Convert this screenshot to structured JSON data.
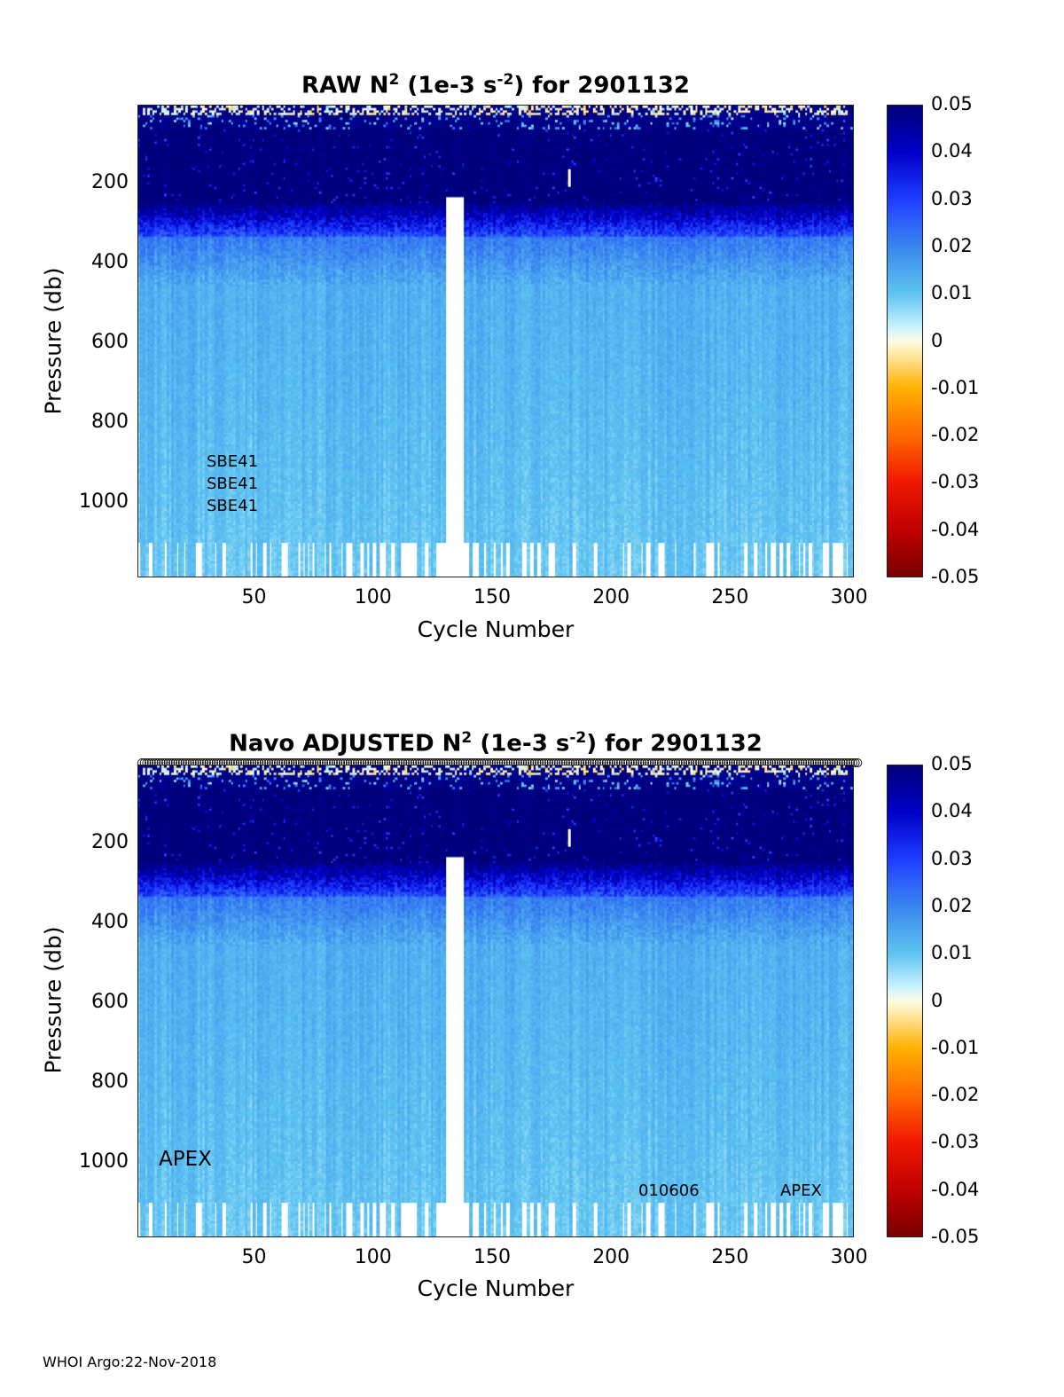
{
  "chart_data": [
    {
      "type": "heatmap",
      "title_prefix": "RAW N",
      "title_sup1": "2",
      "title_mid": " (1e-3 s",
      "title_sup2": "-2",
      "title_suffix": ") for 2901132",
      "xlabel": "Cycle Number",
      "ylabel": "Pressure (db)",
      "xticks": [
        "50",
        "100",
        "150",
        "200",
        "250",
        "300"
      ],
      "xtick_values": [
        50,
        100,
        150,
        200,
        250,
        300
      ],
      "yticks": [
        "200",
        "400",
        "600",
        "800",
        "1000"
      ],
      "ytick_values": [
        200,
        400,
        600,
        800,
        1000
      ],
      "xlim": [
        1,
        302
      ],
      "ylim": [
        1190,
        5
      ],
      "colorbar_ticks": [
        "0.05",
        "0.04",
        "0.03",
        "0.02",
        "0.01",
        "0",
        "-0.01",
        "-0.02",
        "-0.03",
        "-0.04",
        "-0.05"
      ],
      "colorbar_range": [
        -0.05,
        0.05
      ],
      "data_gap_cycles": [
        130,
        138
      ],
      "annotations": [
        "SBE41",
        "SBE41",
        "SBE41"
      ]
    },
    {
      "type": "heatmap",
      "title_prefix": "Navo  ADJUSTED N",
      "title_sup1": "2",
      "title_mid": " (1e-3 s",
      "title_sup2": "-2",
      "title_suffix": ") for 2901132",
      "xlabel": "Cycle Number",
      "ylabel": "Pressure (db)",
      "xticks": [
        "50",
        "100",
        "150",
        "200",
        "250",
        "300"
      ],
      "xtick_values": [
        50,
        100,
        150,
        200,
        250,
        300
      ],
      "yticks": [
        "200",
        "400",
        "600",
        "800",
        "1000"
      ],
      "ytick_values": [
        200,
        400,
        600,
        800,
        1000
      ],
      "xlim": [
        1,
        302
      ],
      "ylim": [
        1190,
        5
      ],
      "colorbar_ticks": [
        "0.05",
        "0.04",
        "0.03",
        "0.02",
        "0.01",
        "0",
        "-0.01",
        "-0.02",
        "-0.03",
        "-0.04",
        "-0.05"
      ],
      "colorbar_range": [
        -0.05,
        0.05
      ],
      "data_gap_cycles": [
        130,
        138
      ],
      "annotations": [
        "APEX",
        "010606",
        "APEX"
      ]
    }
  ],
  "footer": "WHOI Argo:22-Nov-2018",
  "colors": {
    "deep": "#000080",
    "mid": "#1f4fff",
    "light": "#7fdcf5",
    "near_zero": "#fff8dc"
  }
}
